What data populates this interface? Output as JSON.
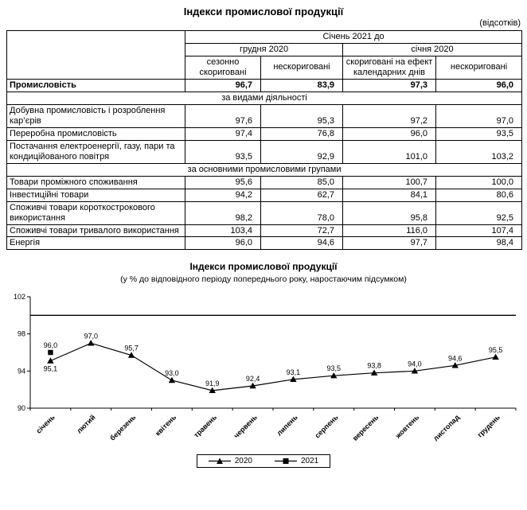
{
  "page": {
    "title": "Індекси промислової продукції",
    "units_note": "(відсотків)"
  },
  "table": {
    "header": {
      "top": "Січень 2021 до",
      "group1": "грудня 2020",
      "group2": "січня 2020",
      "col1": "сезонно скориговані",
      "col2": "нескориговані",
      "col3": "скориговані на ефект календарних днів",
      "col4": "нескориговані"
    },
    "rows": [
      {
        "type": "data",
        "label": "Промисловість",
        "values": [
          "96,7",
          "83,9",
          "97,3",
          "96,0"
        ]
      },
      {
        "type": "section",
        "label": "за видами діяльності"
      },
      {
        "type": "data",
        "label": "Добувна промисловість і розроблення кар’єрів",
        "values": [
          "97,6",
          "95,3",
          "97,2",
          "97,0"
        ]
      },
      {
        "type": "data",
        "label": "Переробна промисловість",
        "values": [
          "97,4",
          "76,8",
          "96,0",
          "93,5"
        ]
      },
      {
        "type": "data",
        "label": "Постачання електроенергії, газу, пари та кондиційованого повітря",
        "values": [
          "93,5",
          "92,9",
          "101,0",
          "103,2"
        ]
      },
      {
        "type": "section",
        "label": "за основними промисловими групами"
      },
      {
        "type": "data",
        "label": "Товари проміжного споживання",
        "values": [
          "95,6",
          "85,0",
          "100,7",
          "100,0"
        ]
      },
      {
        "type": "data",
        "label": "Інвестиційні товари",
        "values": [
          "94,2",
          "62,7",
          "84,1",
          "80,6"
        ]
      },
      {
        "type": "data",
        "label": "Споживчі товари короткострокового використання",
        "values": [
          "98,2",
          "78,0",
          "95,8",
          "92,5"
        ]
      },
      {
        "type": "data",
        "label": "Споживчі товари тривалого використання",
        "values": [
          "103,4",
          "72,7",
          "116,0",
          "107,4"
        ]
      },
      {
        "type": "data",
        "label": "Енергія",
        "values": [
          "96,0",
          "94,6",
          "97,7",
          "98,4"
        ]
      }
    ]
  },
  "chart_data": {
    "type": "line",
    "title": "Індекси промислової продукції",
    "subtitle": "(у % до відповідного періоду попереднього року, наростаючим підсумком)",
    "categories": [
      "січень",
      "лютий",
      "березень",
      "квітень",
      "травень",
      "червень",
      "липень",
      "серпень",
      "вересень",
      "жовтень",
      "листопад",
      "грудень"
    ],
    "series": [
      {
        "name": "2020",
        "marker": "triangle",
        "values": [
          95.1,
          97.0,
          95.7,
          93.0,
          91.9,
          92.4,
          93.1,
          93.5,
          93.8,
          94.0,
          94.6,
          95.5
        ],
        "labels": [
          "95,1",
          "97,0",
          "95,7",
          "93,0",
          "91,9",
          "92,4",
          "93,1",
          "93,5",
          "93,8",
          "94,0",
          "94,6",
          "95,5"
        ]
      },
      {
        "name": "2021",
        "marker": "square",
        "values": [
          96.0
        ],
        "labels": [
          "96,0"
        ]
      }
    ],
    "ylim": [
      90,
      102
    ],
    "yticks": [
      102,
      98,
      94,
      90
    ],
    "reference_line": 100,
    "grid": false,
    "legend_position": "bottom",
    "colors": {
      "line": "#000000",
      "text": "#000000"
    }
  }
}
